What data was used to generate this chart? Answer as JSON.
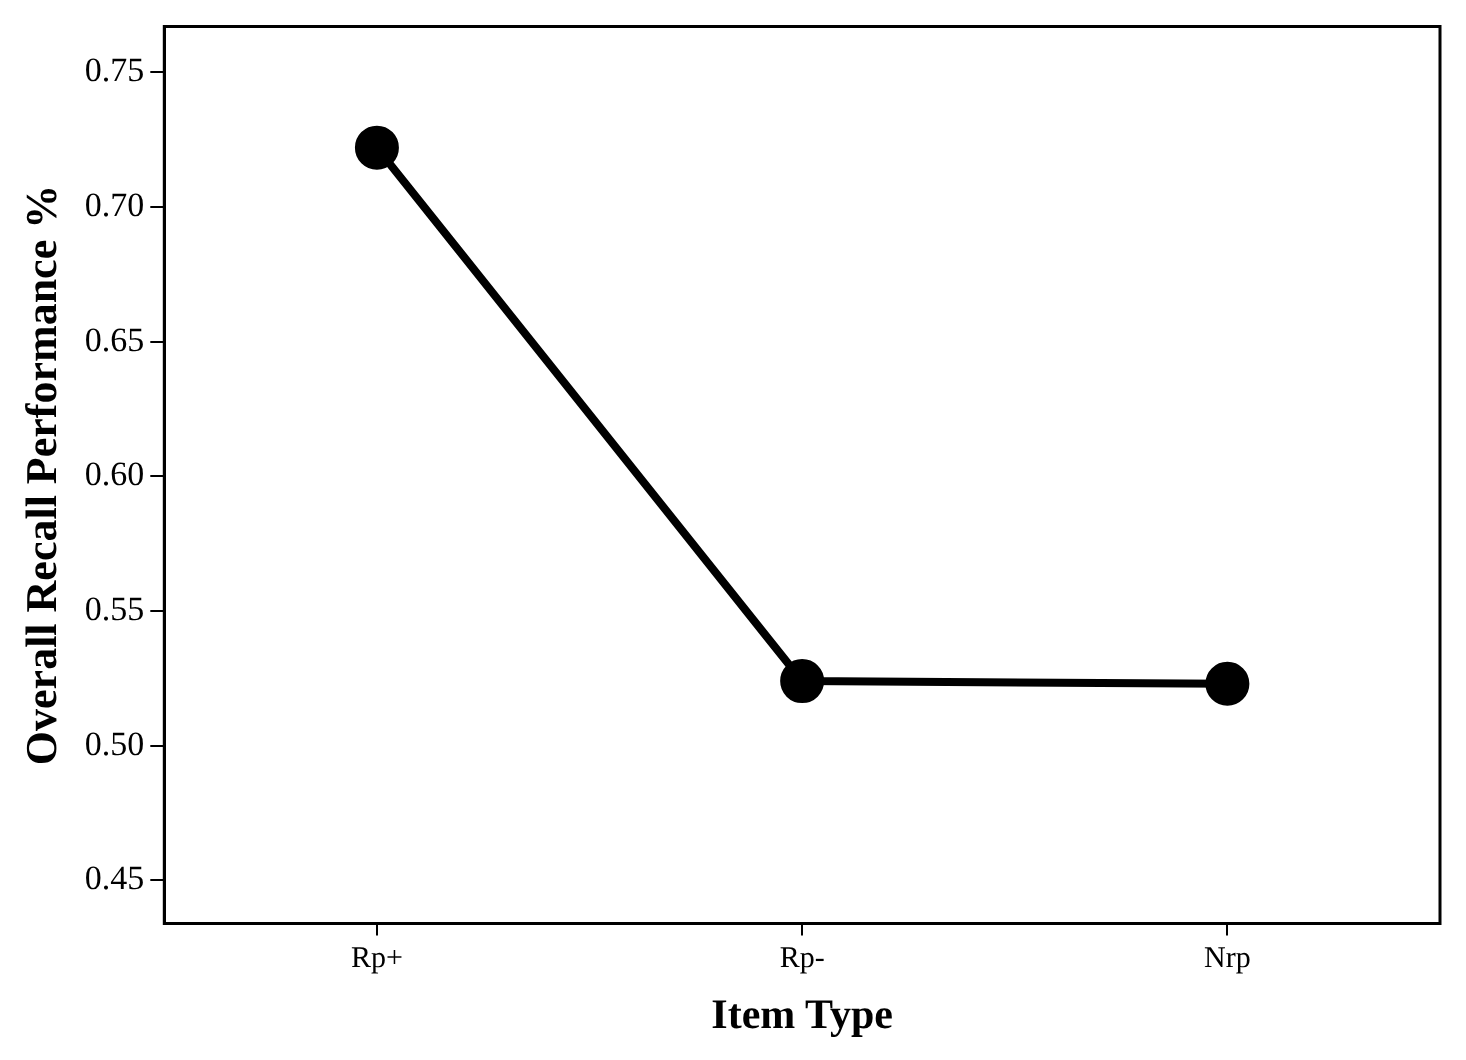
{
  "chart_data": {
    "type": "line",
    "xlabel": "Item Type",
    "ylabel": "Overall Recall Performance %",
    "categories": [
      "Rp+",
      "Rp-",
      "Nrp"
    ],
    "series": [
      {
        "color": "#000000",
        "values": [
          0.722,
          0.524,
          0.523
        ]
      }
    ],
    "ylim": [
      0.434,
      0.767
    ],
    "yticks": [
      0.45,
      {
        "value": 0.5,
        "label": "0.50"
      },
      0.55,
      {
        "value": 0.6,
        "label": "0.60"
      },
      0.65,
      {
        "value": 0.7,
        "label": "0.70"
      },
      0.75
    ],
    "grid": false,
    "legend": false,
    "marker": "circle",
    "line_style": "solid"
  }
}
